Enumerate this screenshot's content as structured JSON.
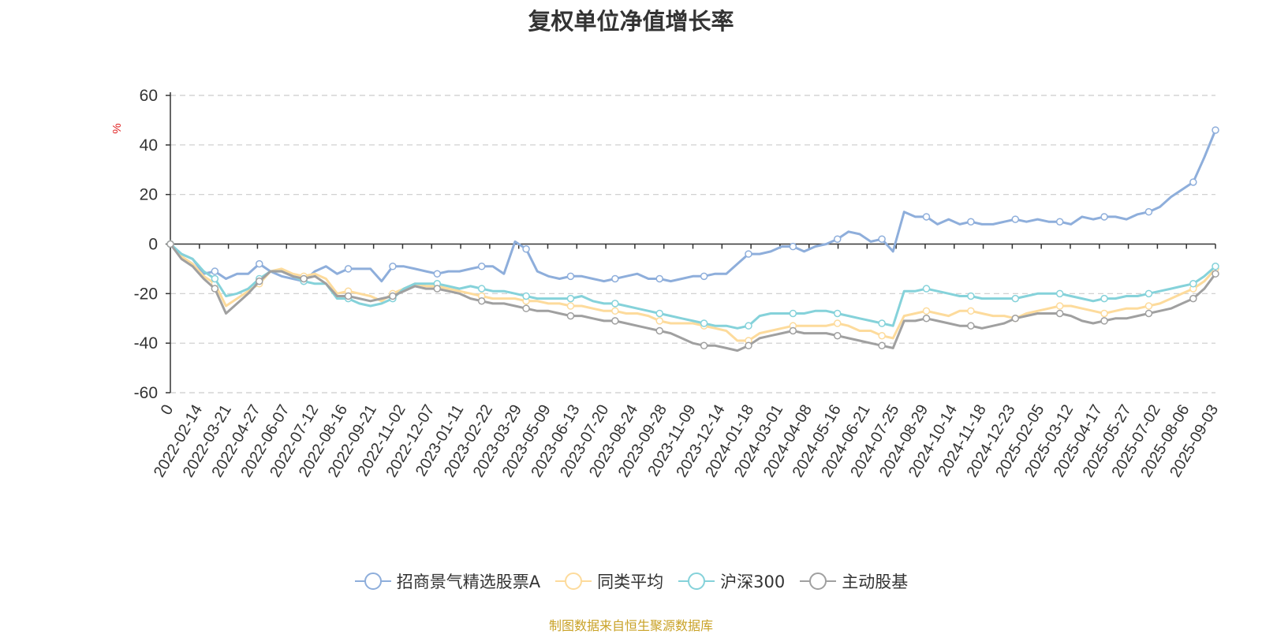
{
  "chart_data": {
    "type": "line",
    "title": "复权单位净值增长率",
    "ylabel": "%",
    "ylim": [
      -60,
      60
    ],
    "yticks": [
      60,
      40,
      20,
      0,
      -20,
      -40,
      -60
    ],
    "grid": true,
    "legend_position": "bottom-center",
    "x_tick_labels": [
      "0",
      "2022-02-14",
      "2022-03-21",
      "2022-04-27",
      "2022-06-07",
      "2022-07-12",
      "2022-08-16",
      "2022-09-21",
      "2022-11-02",
      "2022-12-07",
      "2023-01-11",
      "2023-02-22",
      "2023-03-29",
      "2023-05-09",
      "2023-06-13",
      "2023-07-20",
      "2023-08-24",
      "2023-09-28",
      "2023-11-09",
      "2023-12-14",
      "2024-01-18",
      "2024-03-01",
      "2024-04-08",
      "2024-05-16",
      "2024-06-21",
      "2024-07-25",
      "2024-08-29",
      "2024-10-14",
      "2024-11-18",
      "2024-12-23",
      "2025-02-05",
      "2025-03-12",
      "2025-04-17",
      "2025-05-27",
      "2025-07-02",
      "2025-08-06",
      "2025-09-03"
    ],
    "series": [
      {
        "name": "招商景气精选股票A",
        "color": "#8eaedb",
        "values": [
          0,
          -4,
          -6,
          -12,
          -11,
          -14,
          -12,
          -12,
          -8,
          -11,
          -13,
          -14,
          -15,
          -11,
          -9,
          -12,
          -10,
          -10,
          -10,
          -15,
          -9,
          -9,
          -10,
          -11,
          -12,
          -11,
          -11,
          -10,
          -9,
          -9,
          -12,
          1,
          -2,
          -11,
          -13,
          -14,
          -13,
          -13,
          -14,
          -15,
          -14,
          -13,
          -12,
          -14,
          -14,
          -15,
          -14,
          -13,
          -13,
          -12,
          -12,
          -8,
          -4,
          -4,
          -3,
          -1,
          -1,
          -3,
          -1,
          0,
          2,
          5,
          4,
          1,
          2,
          -3,
          13,
          11,
          11,
          8,
          10,
          8,
          9,
          8,
          8,
          9,
          10,
          9,
          10,
          9,
          9,
          8,
          11,
          10,
          11,
          11,
          10,
          12,
          13,
          15,
          19,
          22,
          25,
          35,
          46
        ]
      },
      {
        "name": "同类平均",
        "color": "#fddb9c",
        "values": [
          0,
          -5,
          -8,
          -13,
          -16,
          -25,
          -22,
          -19,
          -16,
          -11,
          -10,
          -12,
          -13,
          -12,
          -14,
          -20,
          -19,
          -20,
          -21,
          -23,
          -20,
          -18,
          -16,
          -17,
          -17,
          -18,
          -19,
          -20,
          -21,
          -22,
          -22,
          -22,
          -23,
          -23,
          -24,
          -24,
          -25,
          -25,
          -26,
          -27,
          -27,
          -28,
          -28,
          -29,
          -31,
          -32,
          -32,
          -32,
          -33,
          -34,
          -35,
          -39,
          -39,
          -36,
          -35,
          -34,
          -33,
          -33,
          -33,
          -33,
          -32,
          -33,
          -35,
          -35,
          -37,
          -38,
          -29,
          -28,
          -27,
          -28,
          -29,
          -27,
          -27,
          -28,
          -29,
          -29,
          -30,
          -28,
          -27,
          -26,
          -25,
          -25,
          -26,
          -27,
          -28,
          -27,
          -26,
          -26,
          -25,
          -24,
          -22,
          -20,
          -18,
          -15,
          -10
        ]
      },
      {
        "name": "沪深300",
        "color": "#85d2da",
        "values": [
          0,
          -4,
          -6,
          -11,
          -14,
          -21,
          -20,
          -18,
          -14,
          -11,
          -11,
          -13,
          -15,
          -16,
          -16,
          -22,
          -22,
          -24,
          -25,
          -24,
          -22,
          -18,
          -16,
          -16,
          -16,
          -17,
          -18,
          -17,
          -18,
          -19,
          -19,
          -20,
          -21,
          -22,
          -22,
          -22,
          -22,
          -21,
          -23,
          -24,
          -24,
          -25,
          -26,
          -27,
          -28,
          -29,
          -30,
          -31,
          -32,
          -33,
          -33,
          -34,
          -33,
          -29,
          -28,
          -28,
          -28,
          -28,
          -27,
          -27,
          -28,
          -29,
          -30,
          -31,
          -32,
          -33,
          -19,
          -19,
          -18,
          -19,
          -20,
          -21,
          -21,
          -22,
          -22,
          -22,
          -22,
          -21,
          -20,
          -20,
          -20,
          -21,
          -22,
          -23,
          -22,
          -22,
          -21,
          -21,
          -20,
          -19,
          -18,
          -17,
          -16,
          -13,
          -9
        ]
      },
      {
        "name": "主动股基",
        "color": "#a0a0a0",
        "values": [
          0,
          -6,
          -9,
          -14,
          -18,
          -28,
          -24,
          -20,
          -15,
          -11,
          -11,
          -13,
          -14,
          -13,
          -16,
          -21,
          -21,
          -22,
          -23,
          -22,
          -21,
          -19,
          -17,
          -18,
          -18,
          -19,
          -20,
          -22,
          -23,
          -24,
          -24,
          -25,
          -26,
          -27,
          -27,
          -28,
          -29,
          -29,
          -30,
          -31,
          -31,
          -32,
          -33,
          -34,
          -35,
          -36,
          -38,
          -40,
          -41,
          -41,
          -42,
          -43,
          -41,
          -38,
          -37,
          -36,
          -35,
          -36,
          -36,
          -36,
          -37,
          -38,
          -39,
          -40,
          -41,
          -42,
          -31,
          -31,
          -30,
          -31,
          -32,
          -33,
          -33,
          -34,
          -33,
          -32,
          -30,
          -29,
          -28,
          -28,
          -28,
          -29,
          -31,
          -32,
          -31,
          -30,
          -30,
          -29,
          -28,
          -27,
          -26,
          -24,
          -22,
          -18,
          -12
        ]
      }
    ]
  },
  "source_text": "制图数据来自恒生聚源数据库"
}
